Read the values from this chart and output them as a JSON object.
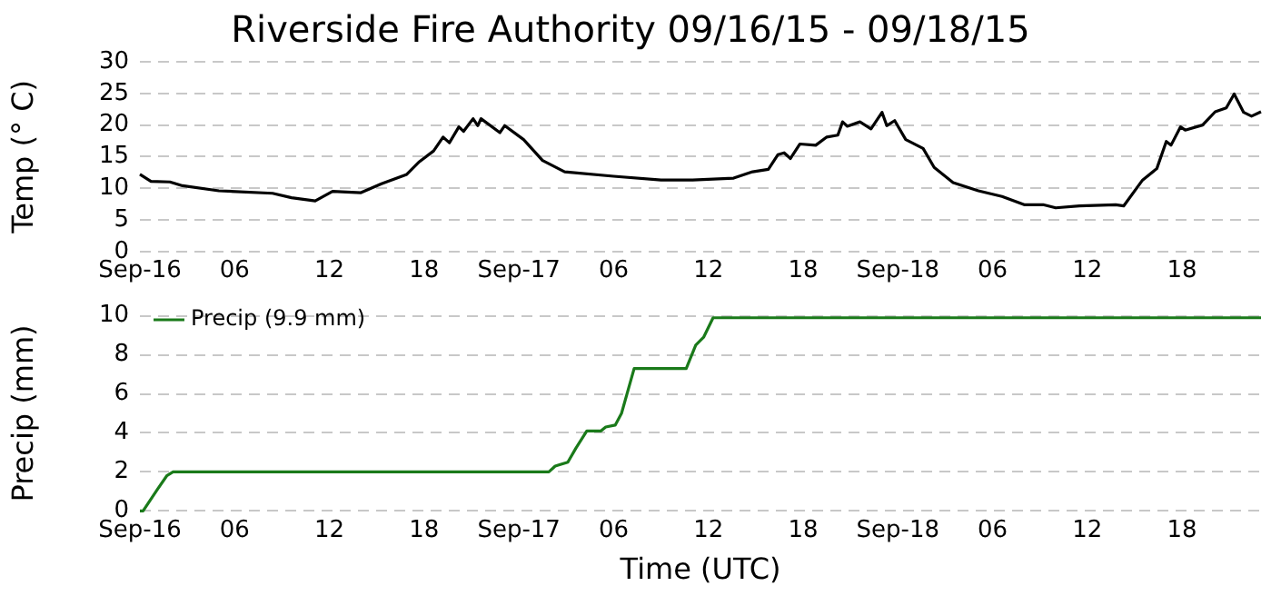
{
  "chart_data": [
    {
      "type": "line",
      "title": "Riverside Fire Authority 09/16/15 - 09/18/15",
      "ylabel": "Temp (° C)",
      "xlim": [
        "--09-16T00:00",
        "--09-18T23:00"
      ],
      "xticks": [
        {
          "value": "--09-16T00:00",
          "label": "Sep-16"
        },
        {
          "value": "--09-16T06:00",
          "label": "06"
        },
        {
          "value": "--09-16T12:00",
          "label": "12"
        },
        {
          "value": "--09-16T18:00",
          "label": "18"
        },
        {
          "value": "--09-17T00:00",
          "label": "Sep-17"
        },
        {
          "value": "--09-17T06:00",
          "label": "06"
        },
        {
          "value": "--09-17T12:00",
          "label": "12"
        },
        {
          "value": "--09-17T18:00",
          "label": "18"
        },
        {
          "value": "--09-18T00:00",
          "label": "Sep-18"
        },
        {
          "value": "--09-18T06:00",
          "label": "06"
        },
        {
          "value": "--09-18T12:00",
          "label": "12"
        },
        {
          "value": "--09-18T18:00",
          "label": "18"
        }
      ],
      "ylim": [
        0,
        30
      ],
      "yticks": [
        0,
        5,
        10,
        15,
        20,
        25,
        30
      ],
      "grid": "y",
      "legend": false,
      "marker": "none",
      "line_style": "solid",
      "series": [
        {
          "color": "#000000",
          "x": [
            "--09-16T00:00",
            "--09-16T00:42",
            "--09-16T01:54",
            "--09-16T02:42",
            "--09-16T05:00",
            "--09-16T08:24",
            "--09-16T09:36",
            "--09-16T11:06",
            "--09-16T12:12",
            "--09-16T14:00",
            "--09-16T15:18",
            "--09-16T16:54",
            "--09-16T17:42",
            "--09-16T18:36",
            "--09-16T19:12",
            "--09-16T19:36",
            "--09-16T20:12",
            "--09-16T20:30",
            "--09-16T21:06",
            "--09-16T21:24",
            "--09-16T21:36",
            "--09-16T22:48",
            "--09-16T23:06",
            "--09-17T00:18",
            "--09-17T01:30",
            "--09-17T02:54",
            "--09-17T06:00",
            "--09-17T09:00",
            "--09-17T11:00",
            "--09-17T13:36",
            "--09-17T14:48",
            "--09-17T15:48",
            "--09-17T16:24",
            "--09-17T16:48",
            "--09-17T17:12",
            "--09-17T17:48",
            "--09-17T18:48",
            "--09-17T19:30",
            "--09-17T20:12",
            "--09-17T20:30",
            "--09-17T20:48",
            "--09-17T21:36",
            "--09-17T22:18",
            "--09-17T23:00",
            "--09-17T23:18",
            "--09-17T23:48",
            "--09-18T00:30",
            "--09-18T01:36",
            "--09-18T02:18",
            "--09-18T03:30",
            "--09-18T05:06",
            "--09-18T06:36",
            "--09-18T08:00",
            "--09-18T09:12",
            "--09-18T10:00",
            "--09-18T11:30",
            "--09-18T13:48",
            "--09-18T14:18",
            "--09-18T15:30",
            "--09-18T16:24",
            "--09-18T17:00",
            "--09-18T17:18",
            "--09-18T17:54",
            "--09-18T18:12",
            "--09-18T19:18",
            "--09-18T20:06",
            "--09-18T20:48",
            "--09-18T21:18",
            "--09-18T21:54",
            "--09-18T22:24",
            "--09-18T23:00"
          ],
          "values": [
            12.2,
            11.1,
            11.0,
            10.4,
            9.6,
            9.2,
            8.5,
            8.0,
            9.5,
            9.3,
            10.7,
            12.2,
            14.2,
            15.9,
            18.1,
            17.2,
            19.7,
            19.0,
            21.0,
            19.9,
            21.0,
            18.8,
            19.9,
            17.7,
            14.4,
            12.6,
            11.9,
            11.3,
            11.3,
            11.6,
            12.6,
            13.0,
            15.3,
            15.6,
            14.7,
            17.0,
            16.8,
            18.1,
            18.4,
            20.5,
            19.8,
            20.5,
            19.4,
            22.0,
            19.9,
            20.7,
            17.7,
            16.3,
            13.3,
            10.9,
            9.6,
            8.7,
            7.4,
            7.4,
            6.9,
            7.2,
            7.4,
            7.2,
            11.3,
            13.1,
            17.4,
            16.8,
            19.7,
            19.2,
            20.0,
            22.1,
            22.7,
            24.9,
            22.0,
            21.4,
            22.1
          ]
        }
      ]
    },
    {
      "type": "line",
      "xlabel": "Time (UTC)",
      "ylabel": "Precip (mm)",
      "xlim": [
        "--09-16T00:00",
        "--09-18T23:00"
      ],
      "xticks": [
        {
          "value": "--09-16T00:00",
          "label": "Sep-16"
        },
        {
          "value": "--09-16T06:00",
          "label": "06"
        },
        {
          "value": "--09-16T12:00",
          "label": "12"
        },
        {
          "value": "--09-16T18:00",
          "label": "18"
        },
        {
          "value": "--09-17T00:00",
          "label": "Sep-17"
        },
        {
          "value": "--09-17T06:00",
          "label": "06"
        },
        {
          "value": "--09-17T12:00",
          "label": "12"
        },
        {
          "value": "--09-17T18:00",
          "label": "18"
        },
        {
          "value": "--09-18T00:00",
          "label": "Sep-18"
        },
        {
          "value": "--09-18T06:00",
          "label": "06"
        },
        {
          "value": "--09-18T12:00",
          "label": "12"
        },
        {
          "value": "--09-18T18:00",
          "label": "18"
        }
      ],
      "ylim": [
        0,
        10
      ],
      "yticks": [
        0,
        2,
        4,
        6,
        8,
        10
      ],
      "grid": "y",
      "legend": "top left",
      "marker": "none",
      "line_style": "solid",
      "series": [
        {
          "name": "Precip (9.9 mm)",
          "color": "#1a7a1a",
          "x": [
            "--09-16T00:00",
            "--09-16T00:12",
            "--09-16T01:06",
            "--09-16T01:42",
            "--09-16T02:06",
            "--09-17T01:54",
            "--09-17T02:18",
            "--09-17T03:06",
            "--09-17T03:36",
            "--09-17T04:18",
            "--09-17T05:12",
            "--09-17T05:30",
            "--09-17T06:06",
            "--09-17T06:30",
            "--09-17T07:18",
            "--09-17T10:36",
            "--09-17T11:12",
            "--09-17T11:42",
            "--09-17T12:18",
            "--09-18T23:00"
          ],
          "values": [
            0,
            0,
            1.1,
            1.8,
            2.0,
            2.0,
            2.3,
            2.5,
            3.2,
            4.1,
            4.1,
            4.3,
            4.4,
            5.0,
            7.3,
            7.3,
            8.5,
            8.9,
            9.9,
            9.9
          ]
        }
      ]
    }
  ]
}
